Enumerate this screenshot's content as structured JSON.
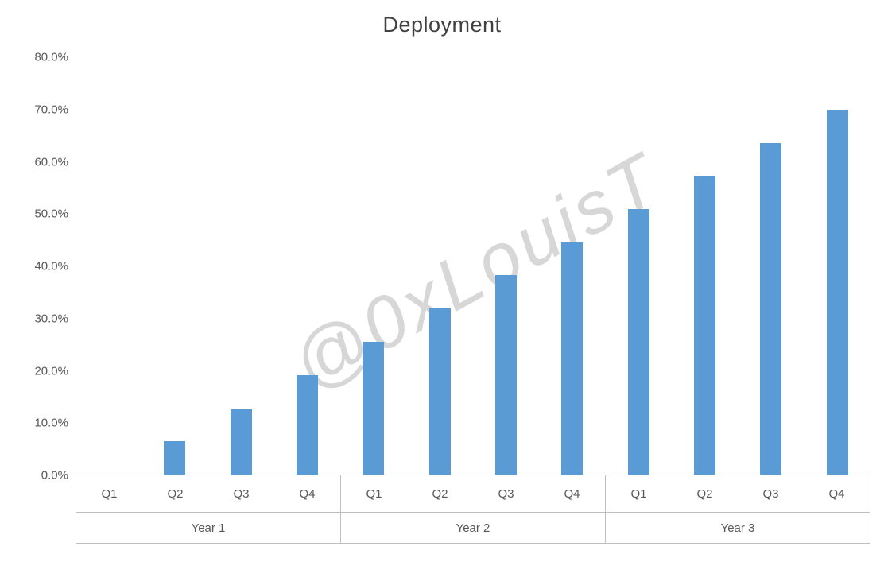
{
  "chart_data": {
    "type": "bar",
    "title": "Deployment",
    "categories": [
      "Q1",
      "Q2",
      "Q3",
      "Q4",
      "Q1",
      "Q2",
      "Q3",
      "Q4",
      "Q1",
      "Q2",
      "Q3",
      "Q4"
    ],
    "group_labels": [
      "Year 1",
      "Year 2",
      "Year 3"
    ],
    "series": [
      {
        "name": "Deployment",
        "values": [
          0,
          6.4,
          12.7,
          19.1,
          25.5,
          31.8,
          38.2,
          44.5,
          50.9,
          57.3,
          63.6,
          70.0
        ]
      }
    ],
    "ylim": [
      0,
      80
    ],
    "y_ticks": [
      "80.0%",
      "70.0%",
      "60.0%",
      "50.0%",
      "40.0%",
      "30.0%",
      "20.0%",
      "10.0%",
      "0.0%"
    ],
    "grid": false,
    "legend": "none",
    "bar_color": "#5b9bd5",
    "axis_line_color": "#bfbfbf"
  },
  "watermark": "@0xLouisT"
}
